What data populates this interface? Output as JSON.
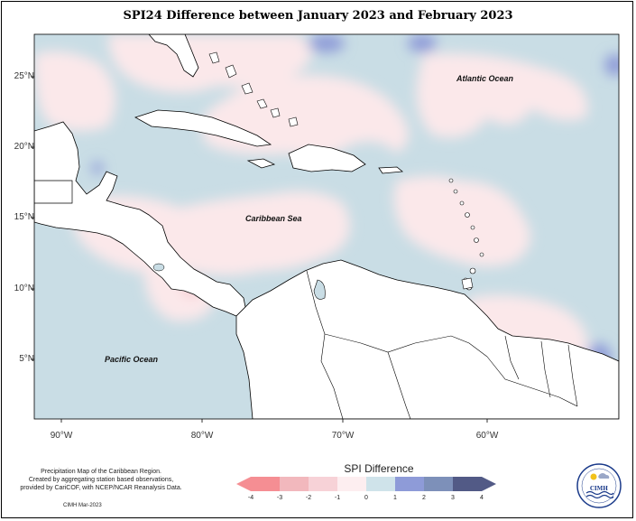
{
  "title": "SPI24 Difference between January 2023 and February 2023",
  "map": {
    "lat_labels": [
      "25°N",
      "20°N",
      "15°N",
      "10°N",
      "5°N"
    ],
    "lon_labels": [
      "90°W",
      "80°W",
      "70°W",
      "60°W"
    ],
    "ocean_labels": {
      "atlantic": "Atlantic Ocean",
      "caribbean": "Caribbean Sea",
      "pacific": "Pacific Ocean"
    },
    "colors": {
      "ocean_light_blue": "#c9dde5",
      "light_pink": "#fbe8ea",
      "pink": "#f5c6cc",
      "medium_blue": "#8e9bd8",
      "land": "#ffffff"
    }
  },
  "legend": {
    "title": "SPI Difference",
    "ticks": [
      "-4",
      "-3",
      "-2",
      "-1",
      "0",
      "1",
      "2",
      "3",
      "4"
    ],
    "colors": [
      "#f58e93",
      "#f2b8bd",
      "#f7d2d7",
      "#fdeef0",
      "#cfe3ea",
      "#8e9bd8",
      "#7d90b9",
      "#525a86"
    ]
  },
  "credit": {
    "lines": [
      "Precipitation Map of the Caribbean Region.",
      "Created by aggregating station based observations,",
      "provided by CariCOF, with NCEP/NCAR Reanalysis Data."
    ],
    "date": "CIMH Mar-2023"
  },
  "logo": {
    "icon": "cimh-logo-icon",
    "text": "CIMH"
  }
}
